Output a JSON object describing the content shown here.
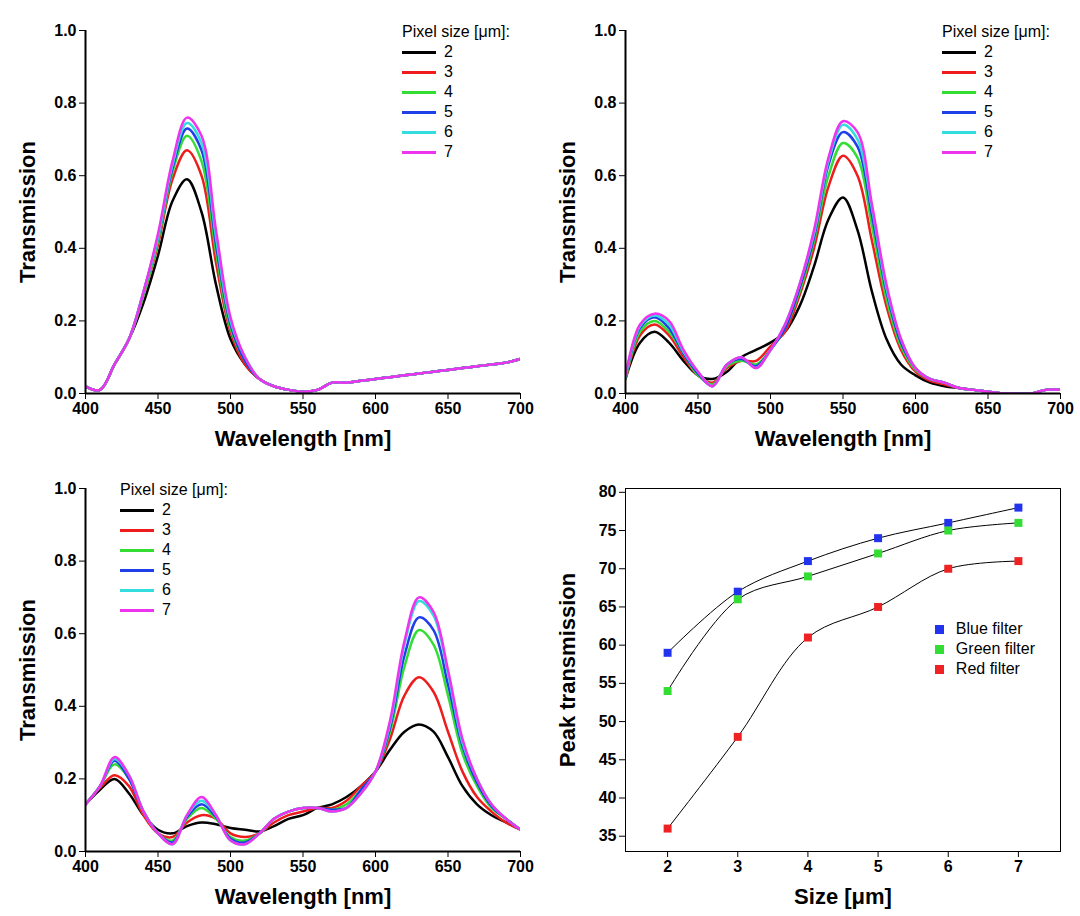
{
  "chart_data": [
    {
      "type": "line",
      "xlabel": "Wavelength [nm]",
      "ylabel": "Transmission",
      "legend": "top-right",
      "legend_title": "Pixel size [μm]:",
      "xlim": [
        400,
        700
      ],
      "xticks": [
        400,
        450,
        500,
        550,
        600,
        650,
        700
      ],
      "ylim": [
        0,
        1
      ],
      "yticks": [
        {
          "value": 0,
          "label": "0.0"
        },
        {
          "value": 0.2,
          "label": "0.2"
        },
        {
          "value": 0.4,
          "label": "0.4"
        },
        {
          "value": 0.6,
          "label": "0.6"
        },
        {
          "value": 0.8,
          "label": "0.8"
        },
        {
          "value": 1,
          "label": "1.0"
        }
      ],
      "x": [
        400,
        410,
        420,
        430,
        440,
        450,
        460,
        470,
        480,
        490,
        500,
        510,
        520,
        530,
        540,
        550,
        560,
        570,
        580,
        590,
        600,
        610,
        620,
        630,
        640,
        650,
        660,
        670,
        680,
        690,
        700
      ],
      "series": [
        {
          "name": "2",
          "color": "#000000",
          "values": [
            0.02,
            0.01,
            0.08,
            0.15,
            0.25,
            0.38,
            0.53,
            0.59,
            0.5,
            0.3,
            0.15,
            0.08,
            0.04,
            0.02,
            0.01,
            0.005,
            0.01,
            0.03,
            0.03,
            0.035,
            0.04,
            0.045,
            0.05,
            0.055,
            0.06,
            0.065,
            0.07,
            0.075,
            0.08,
            0.085,
            0.095
          ]
        },
        {
          "name": "3",
          "color": "#ee1c1c",
          "values": [
            0.02,
            0.01,
            0.08,
            0.15,
            0.27,
            0.41,
            0.59,
            0.67,
            0.6,
            0.36,
            0.17,
            0.08,
            0.04,
            0.02,
            0.01,
            0.005,
            0.01,
            0.03,
            0.03,
            0.035,
            0.04,
            0.045,
            0.05,
            0.055,
            0.06,
            0.065,
            0.07,
            0.075,
            0.08,
            0.085,
            0.095
          ]
        },
        {
          "name": "4",
          "color": "#33dd33",
          "values": [
            0.02,
            0.01,
            0.08,
            0.15,
            0.27,
            0.42,
            0.61,
            0.71,
            0.64,
            0.39,
            0.18,
            0.09,
            0.04,
            0.02,
            0.01,
            0.005,
            0.01,
            0.03,
            0.03,
            0.035,
            0.04,
            0.045,
            0.05,
            0.055,
            0.06,
            0.065,
            0.07,
            0.075,
            0.08,
            0.085,
            0.095
          ]
        },
        {
          "name": "5",
          "color": "#1f3fe8",
          "values": [
            0.02,
            0.01,
            0.08,
            0.15,
            0.28,
            0.43,
            0.62,
            0.73,
            0.67,
            0.41,
            0.19,
            0.09,
            0.04,
            0.02,
            0.01,
            0.005,
            0.01,
            0.03,
            0.03,
            0.035,
            0.04,
            0.045,
            0.05,
            0.055,
            0.06,
            0.065,
            0.07,
            0.075,
            0.08,
            0.085,
            0.095
          ]
        },
        {
          "name": "6",
          "color": "#33dddd",
          "values": [
            0.02,
            0.01,
            0.08,
            0.15,
            0.28,
            0.43,
            0.63,
            0.745,
            0.69,
            0.43,
            0.2,
            0.1,
            0.04,
            0.02,
            0.01,
            0.005,
            0.01,
            0.03,
            0.03,
            0.035,
            0.04,
            0.045,
            0.05,
            0.055,
            0.06,
            0.065,
            0.07,
            0.075,
            0.08,
            0.085,
            0.095
          ]
        },
        {
          "name": "7",
          "color": "#ee33ee",
          "values": [
            0.02,
            0.01,
            0.08,
            0.15,
            0.28,
            0.44,
            0.64,
            0.76,
            0.71,
            0.45,
            0.21,
            0.1,
            0.04,
            0.02,
            0.01,
            0.005,
            0.01,
            0.03,
            0.03,
            0.035,
            0.04,
            0.045,
            0.05,
            0.055,
            0.06,
            0.065,
            0.07,
            0.075,
            0.08,
            0.085,
            0.095
          ]
        }
      ]
    },
    {
      "type": "line",
      "xlabel": "Wavelength [nm]",
      "ylabel": "Transmission",
      "legend": "top-right",
      "legend_title": "Pixel size [μm]:",
      "xlim": [
        400,
        700
      ],
      "xticks": [
        400,
        450,
        500,
        550,
        600,
        650,
        700
      ],
      "ylim": [
        0,
        1
      ],
      "yticks": [
        {
          "value": 0,
          "label": "0.0"
        },
        {
          "value": 0.2,
          "label": "0.2"
        },
        {
          "value": 0.4,
          "label": "0.4"
        },
        {
          "value": 0.6,
          "label": "0.6"
        },
        {
          "value": 0.8,
          "label": "0.8"
        },
        {
          "value": 1,
          "label": "1.0"
        }
      ],
      "x": [
        400,
        410,
        420,
        430,
        440,
        450,
        460,
        470,
        480,
        490,
        500,
        510,
        520,
        530,
        540,
        550,
        560,
        570,
        580,
        590,
        600,
        610,
        620,
        630,
        640,
        650,
        660,
        670,
        680,
        690,
        700
      ],
      "series": [
        {
          "name": "2",
          "color": "#000000",
          "values": [
            0.04,
            0.14,
            0.17,
            0.14,
            0.09,
            0.05,
            0.04,
            0.06,
            0.1,
            0.12,
            0.14,
            0.17,
            0.24,
            0.35,
            0.48,
            0.54,
            0.45,
            0.28,
            0.15,
            0.08,
            0.05,
            0.03,
            0.02,
            0.015,
            0.01,
            0.005,
            0,
            0,
            0,
            0.01,
            0.01
          ]
        },
        {
          "name": "3",
          "color": "#ee1c1c",
          "values": [
            0.04,
            0.16,
            0.19,
            0.16,
            0.1,
            0.05,
            0.03,
            0.07,
            0.09,
            0.09,
            0.13,
            0.17,
            0.27,
            0.4,
            0.57,
            0.655,
            0.6,
            0.42,
            0.24,
            0.12,
            0.06,
            0.035,
            0.025,
            0.015,
            0.01,
            0.005,
            0,
            0,
            0,
            0.01,
            0.01
          ]
        },
        {
          "name": "4",
          "color": "#33dd33",
          "values": [
            0.04,
            0.17,
            0.2,
            0.17,
            0.11,
            0.05,
            0.025,
            0.075,
            0.09,
            0.08,
            0.12,
            0.18,
            0.28,
            0.42,
            0.6,
            0.69,
            0.65,
            0.46,
            0.26,
            0.13,
            0.065,
            0.04,
            0.03,
            0.015,
            0.01,
            0.005,
            0,
            0,
            0,
            0.01,
            0.01
          ]
        },
        {
          "name": "5",
          "color": "#1f3fe8",
          "values": [
            0.045,
            0.18,
            0.21,
            0.18,
            0.11,
            0.055,
            0.02,
            0.08,
            0.095,
            0.075,
            0.12,
            0.18,
            0.29,
            0.43,
            0.63,
            0.72,
            0.68,
            0.49,
            0.28,
            0.14,
            0.07,
            0.04,
            0.03,
            0.015,
            0.01,
            0.005,
            0,
            0,
            0,
            0.01,
            0.01
          ]
        },
        {
          "name": "6",
          "color": "#33dddd",
          "values": [
            0.045,
            0.185,
            0.215,
            0.19,
            0.115,
            0.06,
            0.02,
            0.08,
            0.1,
            0.07,
            0.12,
            0.19,
            0.3,
            0.44,
            0.64,
            0.74,
            0.7,
            0.51,
            0.29,
            0.15,
            0.07,
            0.04,
            0.03,
            0.015,
            0.01,
            0.005,
            0,
            0,
            0,
            0.01,
            0.01
          ]
        },
        {
          "name": "7",
          "color": "#ee33ee",
          "values": [
            0.05,
            0.19,
            0.22,
            0.2,
            0.12,
            0.06,
            0.02,
            0.08,
            0.1,
            0.07,
            0.12,
            0.19,
            0.3,
            0.45,
            0.65,
            0.75,
            0.72,
            0.52,
            0.3,
            0.15,
            0.07,
            0.04,
            0.03,
            0.015,
            0.01,
            0.005,
            0,
            0,
            0,
            0.01,
            0.01
          ]
        }
      ]
    },
    {
      "type": "line",
      "xlabel": "Wavelength [nm]",
      "ylabel": "Transmission",
      "legend": "top-left",
      "legend_title": "Pixel size [μm]:",
      "xlim": [
        400,
        700
      ],
      "xticks": [
        400,
        450,
        500,
        550,
        600,
        650,
        700
      ],
      "ylim": [
        0,
        1
      ],
      "yticks": [
        {
          "value": 0,
          "label": "0.0"
        },
        {
          "value": 0.2,
          "label": "0.2"
        },
        {
          "value": 0.4,
          "label": "0.4"
        },
        {
          "value": 0.6,
          "label": "0.6"
        },
        {
          "value": 0.8,
          "label": "0.8"
        },
        {
          "value": 1,
          "label": "1.0"
        }
      ],
      "x": [
        400,
        410,
        420,
        430,
        440,
        450,
        460,
        470,
        480,
        490,
        500,
        510,
        520,
        530,
        540,
        550,
        560,
        570,
        580,
        590,
        600,
        610,
        620,
        630,
        640,
        650,
        660,
        670,
        680,
        690,
        700
      ],
      "series": [
        {
          "name": "2",
          "color": "#000000",
          "values": [
            0.13,
            0.17,
            0.2,
            0.16,
            0.1,
            0.06,
            0.05,
            0.07,
            0.08,
            0.075,
            0.065,
            0.06,
            0.055,
            0.07,
            0.09,
            0.1,
            0.12,
            0.13,
            0.15,
            0.18,
            0.22,
            0.28,
            0.33,
            0.35,
            0.33,
            0.26,
            0.18,
            0.13,
            0.1,
            0.08,
            0.06
          ]
        },
        {
          "name": "3",
          "color": "#ee1c1c",
          "values": [
            0.13,
            0.175,
            0.21,
            0.18,
            0.1,
            0.05,
            0.04,
            0.08,
            0.1,
            0.09,
            0.05,
            0.04,
            0.05,
            0.08,
            0.1,
            0.11,
            0.12,
            0.12,
            0.14,
            0.18,
            0.22,
            0.31,
            0.43,
            0.48,
            0.44,
            0.33,
            0.22,
            0.15,
            0.11,
            0.08,
            0.06
          ]
        },
        {
          "name": "4",
          "color": "#33dd33",
          "values": [
            0.13,
            0.18,
            0.24,
            0.2,
            0.11,
            0.05,
            0.03,
            0.09,
            0.12,
            0.09,
            0.04,
            0.03,
            0.05,
            0.09,
            0.11,
            0.12,
            0.12,
            0.115,
            0.13,
            0.17,
            0.22,
            0.33,
            0.51,
            0.61,
            0.57,
            0.43,
            0.27,
            0.18,
            0.12,
            0.09,
            0.06
          ]
        },
        {
          "name": "5",
          "color": "#1f3fe8",
          "values": [
            0.13,
            0.18,
            0.25,
            0.2,
            0.11,
            0.05,
            0.025,
            0.095,
            0.13,
            0.095,
            0.035,
            0.025,
            0.05,
            0.09,
            0.11,
            0.12,
            0.12,
            0.115,
            0.12,
            0.17,
            0.22,
            0.34,
            0.54,
            0.645,
            0.61,
            0.46,
            0.29,
            0.19,
            0.125,
            0.09,
            0.06
          ]
        },
        {
          "name": "6",
          "color": "#33dddd",
          "values": [
            0.13,
            0.18,
            0.255,
            0.21,
            0.11,
            0.05,
            0.02,
            0.1,
            0.14,
            0.1,
            0.03,
            0.02,
            0.05,
            0.09,
            0.11,
            0.12,
            0.12,
            0.11,
            0.12,
            0.16,
            0.22,
            0.35,
            0.57,
            0.69,
            0.65,
            0.49,
            0.3,
            0.2,
            0.13,
            0.09,
            0.06
          ]
        },
        {
          "name": "7",
          "color": "#ee33ee",
          "values": [
            0.13,
            0.18,
            0.26,
            0.21,
            0.11,
            0.05,
            0.02,
            0.1,
            0.15,
            0.1,
            0.03,
            0.02,
            0.05,
            0.09,
            0.11,
            0.12,
            0.12,
            0.11,
            0.12,
            0.16,
            0.22,
            0.36,
            0.58,
            0.7,
            0.66,
            0.5,
            0.31,
            0.2,
            0.13,
            0.09,
            0.06
          ]
        }
      ]
    },
    {
      "type": "line",
      "marker": "square",
      "xlabel": "Size [μm]",
      "ylabel": "Peak transmission",
      "legend": "right",
      "xlim": [
        1.4,
        7.6
      ],
      "xticks": [
        2,
        3,
        4,
        5,
        6,
        7
      ],
      "ylim": [
        33,
        80.5
      ],
      "yticks": [
        35,
        40,
        45,
        50,
        55,
        60,
        65,
        70,
        75,
        80
      ],
      "x": [
        2,
        3,
        4,
        5,
        6,
        7
      ],
      "series": [
        {
          "name": "Blue filter",
          "color": "#2233ee",
          "values": [
            59,
            67,
            71,
            74,
            76,
            78
          ]
        },
        {
          "name": "Green filter",
          "color": "#33dd33",
          "values": [
            54,
            66,
            69,
            72,
            75,
            76
          ]
        },
        {
          "name": "Red filter",
          "color": "#ee2222",
          "values": [
            36,
            48,
            61,
            65,
            70,
            71
          ]
        }
      ]
    }
  ]
}
